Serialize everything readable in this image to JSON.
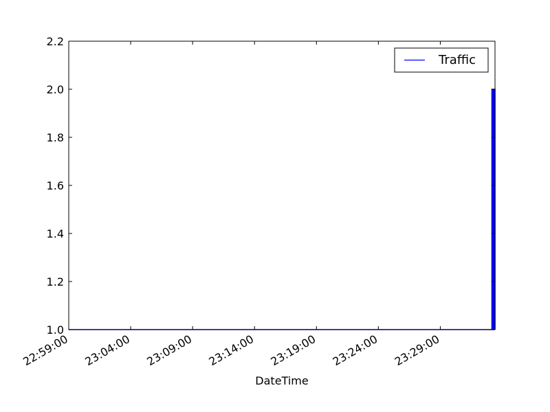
{
  "chart_data": {
    "type": "line",
    "xlabel": "DateTime",
    "ylabel": "",
    "x_range": [
      "22:59:00",
      "23:33:25"
    ],
    "ylim": [
      1.0,
      2.2
    ],
    "x_ticks": [
      "22:59:00",
      "23:04:00",
      "23:09:00",
      "23:14:00",
      "23:19:00",
      "23:24:00",
      "23:29:00"
    ],
    "y_ticks": [
      "1.0",
      "1.2",
      "1.4",
      "1.6",
      "1.8",
      "2.0",
      "2.2"
    ],
    "grid": false,
    "legend_position": "top-right",
    "series": [
      {
        "name": "Traffic",
        "color": "#0000ff",
        "points": [
          [
            "22:59:00",
            1
          ],
          [
            "23:33:10",
            1
          ],
          [
            "23:33:10",
            2
          ],
          [
            "23:33:15",
            2
          ],
          [
            "23:33:15",
            1
          ],
          [
            "23:33:20",
            1
          ],
          [
            "23:33:20",
            2
          ],
          [
            "23:33:25",
            2
          ],
          [
            "23:33:25",
            1
          ]
        ]
      }
    ]
  }
}
